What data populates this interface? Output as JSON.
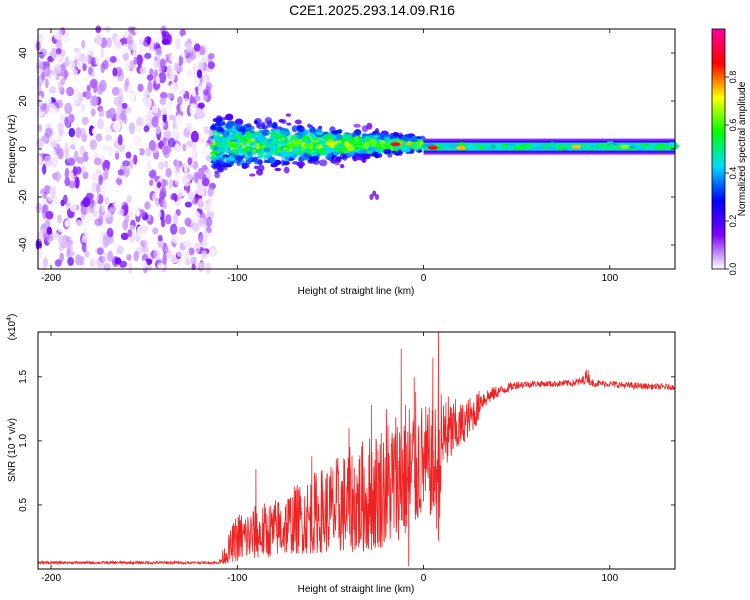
{
  "title": "C2E1.2025.293.14.09.R16",
  "chart_data": [
    {
      "type": "heatmap",
      "title": "C2E1.2025.293.14.09.R16",
      "xlabel": "Height of straight line (km)",
      "ylabel": "Frequency (Hz)",
      "xlim": [
        -207,
        135
      ],
      "ylim": [
        -50,
        50
      ],
      "x_ticks": [
        -200,
        -100,
        0,
        100
      ],
      "x_tick_labels": [
        "-200",
        "-100",
        "0",
        "100"
      ],
      "y_ticks": [
        -40,
        -20,
        0,
        20,
        40
      ],
      "y_tick_labels": [
        "-40",
        "-20",
        "0",
        "20",
        "40"
      ],
      "colorbar": {
        "label": "Normalized spectral amplitude",
        "range": [
          0,
          1
        ],
        "ticks": [
          0.0,
          0.2,
          0.4,
          0.6,
          0.8
        ],
        "tick_labels": [
          "0.0",
          "0.2",
          "0.4",
          "0.6",
          "0.8"
        ],
        "colors": [
          "#ffffff",
          "#7d00ff",
          "#0000ff",
          "#00dcff",
          "#00ff00",
          "#ffff00",
          "#ff0000",
          "#ff00a0"
        ]
      },
      "regions": [
        {
          "name": "noise",
          "x_range": [
            -207,
            -113
          ],
          "freq_spread": 50,
          "amplitude": 0.08
        },
        {
          "name": "turbulent",
          "x_range": [
            -113,
            0
          ],
          "freq_spread_start": 12,
          "freq_spread_end": 3,
          "amplitude": 0.35
        },
        {
          "name": "stable",
          "x_range": [
            0,
            135
          ],
          "freq_center": 1,
          "amplitude": 0.5
        }
      ],
      "hot_spots": [
        {
          "x": -15,
          "freq": 2,
          "value": 0.9
        },
        {
          "x": 5,
          "freq": 0.5,
          "value": 0.85
        },
        {
          "x": 20,
          "freq": 0.5,
          "value": 0.75
        },
        {
          "x": 82,
          "freq": 1,
          "value": 0.75
        },
        {
          "x": 108,
          "freq": 1,
          "value": 0.65
        }
      ],
      "isolated_blob": {
        "x": -28,
        "freq": -20,
        "value": 0.15
      }
    },
    {
      "type": "line",
      "xlabel": "Height of straight line (km)",
      "ylabel": "SNR (10 * v/v)",
      "multiplier_label": "(x10",
      "multiplier_exp": "4",
      "multiplier_close": ")",
      "xlim": [
        -207,
        135
      ],
      "ylim": [
        0,
        1.85
      ],
      "x_ticks": [
        -200,
        -100,
        0,
        100
      ],
      "x_tick_labels": [
        "-200",
        "-100",
        "0",
        "100"
      ],
      "y_ticks": [
        0.5,
        1.0,
        1.5
      ],
      "y_tick_labels": [
        "0.5",
        "1.0",
        "1.5"
      ],
      "series": [
        {
          "name": "SNR",
          "color": "#ee2222",
          "envelope_x": [
            -207,
            -110,
            -100,
            -90,
            -80,
            -70,
            -60,
            -50,
            -40,
            -30,
            -20,
            -10,
            -5,
            0,
            5,
            8,
            10,
            15,
            20,
            25,
            30,
            40,
            50,
            60,
            70,
            80,
            85,
            88,
            90,
            100,
            110,
            120,
            135
          ],
          "envelope_lo": [
            0.03,
            0.03,
            0.06,
            0.08,
            0.1,
            0.12,
            0.12,
            0.13,
            0.13,
            0.13,
            0.18,
            0.25,
            0.3,
            0.45,
            0.4,
            0.25,
            0.7,
            0.85,
            0.95,
            1.05,
            1.15,
            1.3,
            1.38,
            1.4,
            1.4,
            1.4,
            1.4,
            1.4,
            1.4,
            1.4,
            1.38,
            1.38,
            1.38
          ],
          "envelope_hi": [
            0.06,
            0.06,
            0.45,
            0.5,
            0.55,
            0.65,
            0.75,
            0.85,
            0.95,
            1.05,
            1.2,
            1.35,
            1.4,
            1.3,
            1.25,
            1.4,
            1.4,
            1.35,
            1.3,
            1.35,
            1.4,
            1.43,
            1.47,
            1.47,
            1.47,
            1.48,
            1.5,
            1.58,
            1.48,
            1.47,
            1.46,
            1.45,
            1.44
          ],
          "spikes": [
            {
              "x": -90,
              "y": 0.78
            },
            {
              "x": -60,
              "y": 0.88
            },
            {
              "x": -40,
              "y": 1.1
            },
            {
              "x": -28,
              "y": 1.28
            },
            {
              "x": -20,
              "y": 1.25
            },
            {
              "x": -12,
              "y": 1.72
            },
            {
              "x": -5,
              "y": 1.5
            },
            {
              "x": 5,
              "y": 1.65
            },
            {
              "x": 8,
              "y": 1.85
            },
            {
              "x": 12,
              "y": 1.3
            }
          ],
          "dips": [
            {
              "x": 8,
              "y": 0.22
            },
            {
              "x": -8,
              "y": 0.02
            }
          ]
        }
      ]
    }
  ]
}
